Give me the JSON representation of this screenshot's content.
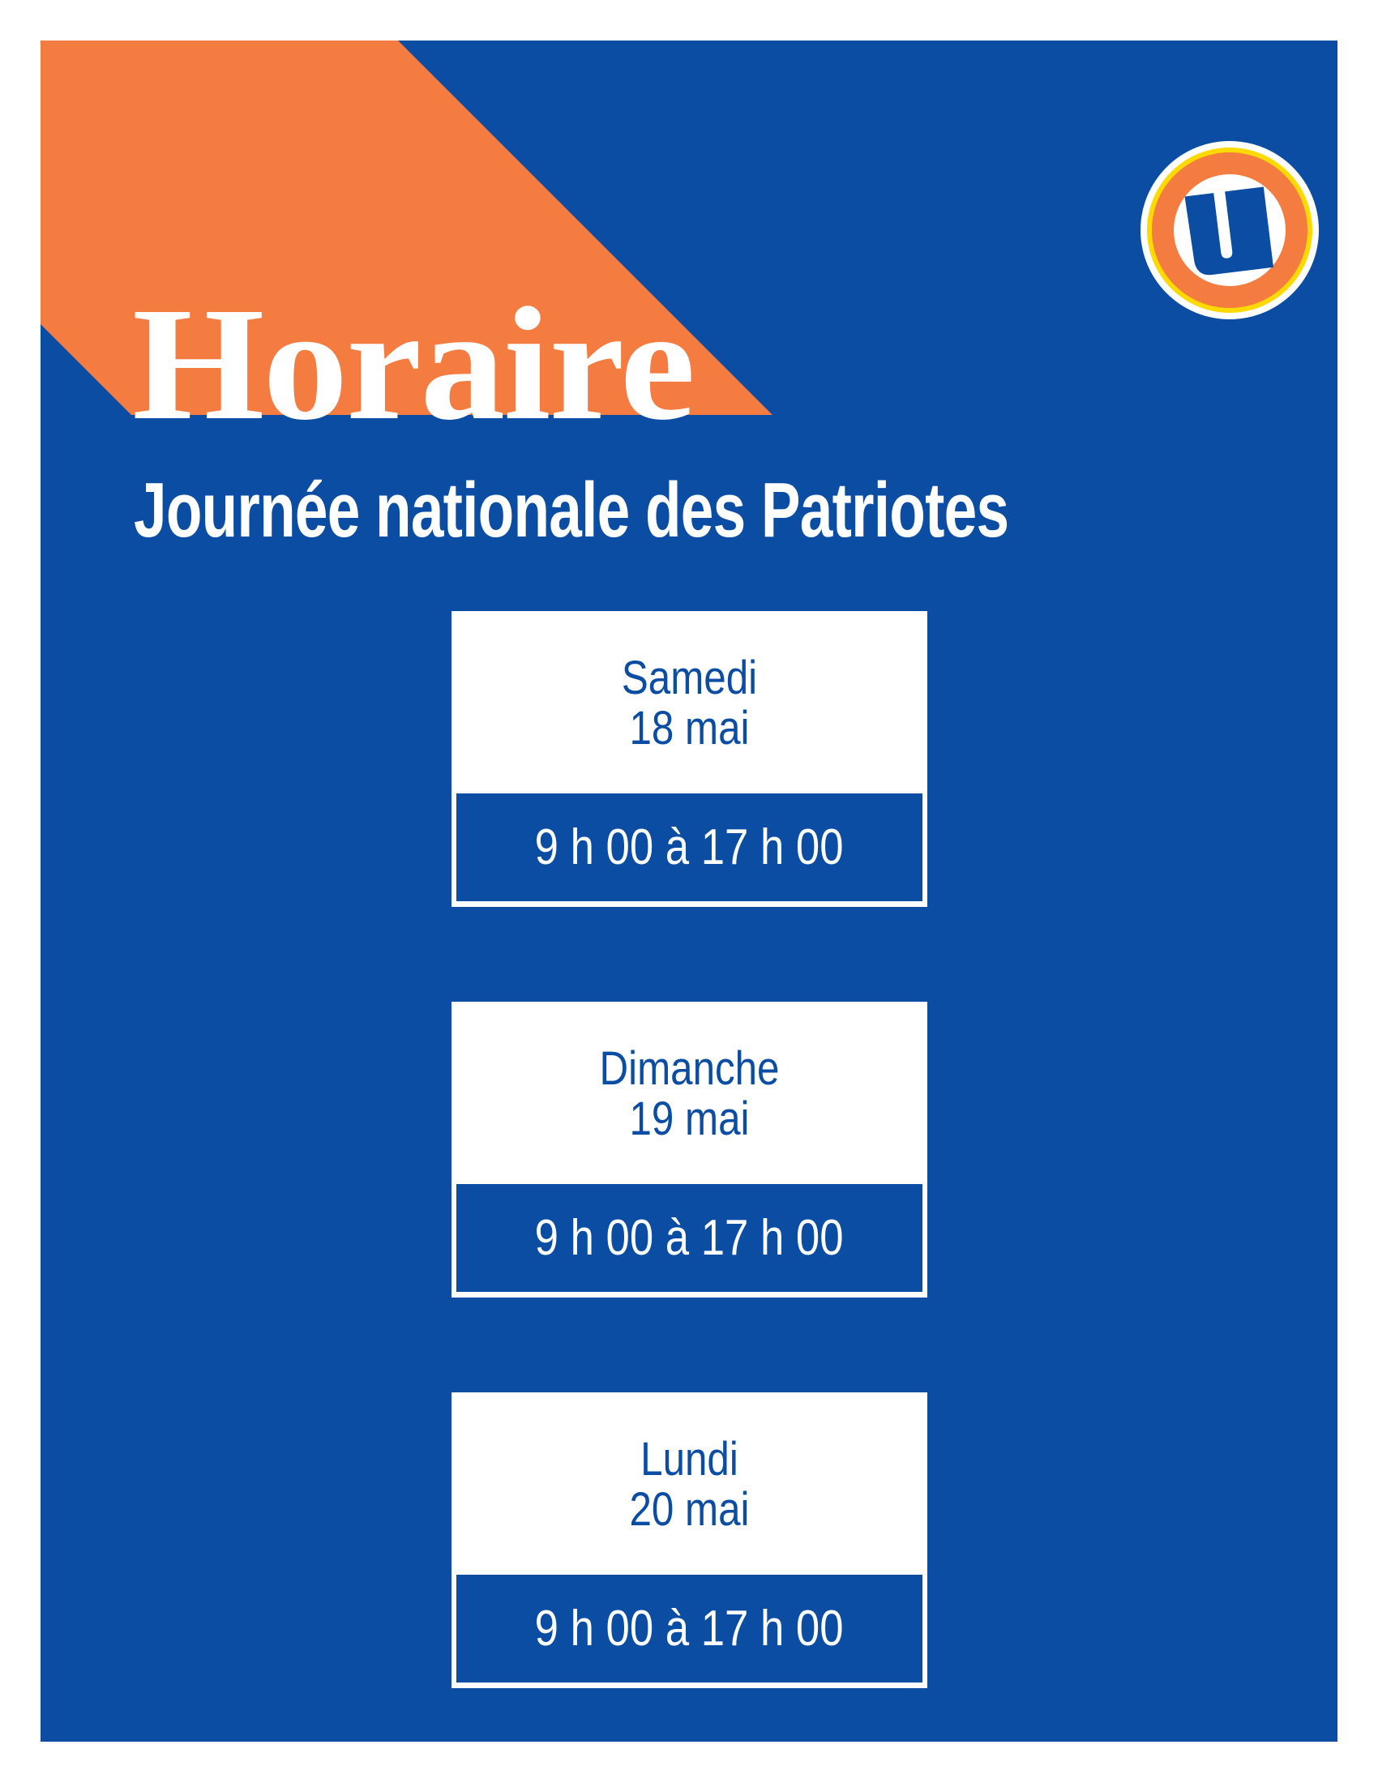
{
  "colors": {
    "brand_blue": "#0a4da2",
    "accent_orange": "#f47c40",
    "logo_yellow": "#ffd900",
    "white": "#ffffff"
  },
  "header": {
    "title": "Horaire",
    "subtitle": "Journée nationale des Patriotes"
  },
  "logo": {
    "icon": "u-logo"
  },
  "schedule": [
    {
      "day": "Samedi",
      "date": "18 mai",
      "hours": "9 h 00 à 17 h 00"
    },
    {
      "day": "Dimanche",
      "date": "19 mai",
      "hours": "9 h 00 à 17 h 00"
    },
    {
      "day": "Lundi",
      "date": "20 mai",
      "hours": "9 h 00 à 17 h 00"
    }
  ]
}
